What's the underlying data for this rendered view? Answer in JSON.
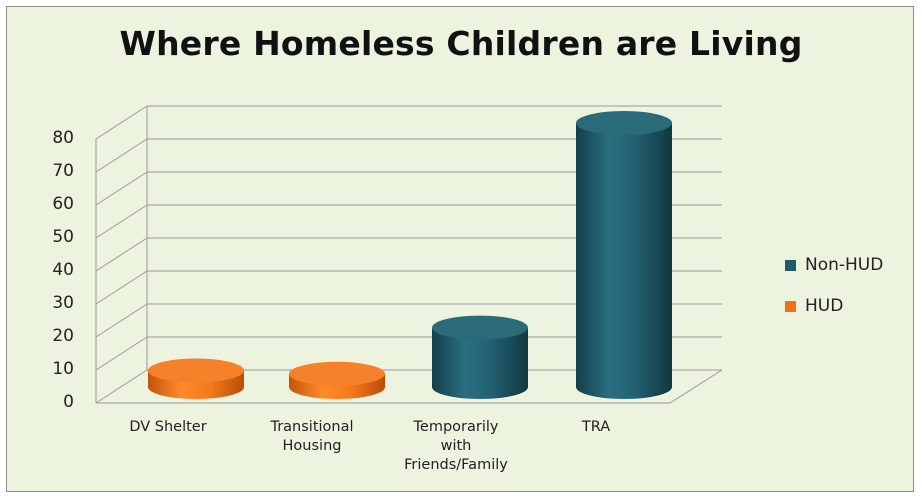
{
  "chart_data": {
    "type": "bar",
    "title": "Where Homeless Children are Living",
    "categories": [
      "DV Shelter",
      "Transitional\nHousing",
      "Temporarily\nwith\nFriends/Family",
      "TRA"
    ],
    "series": [
      {
        "name": "Non-HUD",
        "values": [
          0,
          0,
          18,
          80
        ],
        "color": "#1e5a69"
      },
      {
        "name": "HUD",
        "values": [
          5,
          4,
          0,
          0
        ],
        "color": "#f07018"
      }
    ],
    "ylim": [
      0,
      80
    ],
    "yticks": [
      0,
      10,
      20,
      30,
      40,
      50,
      60,
      70,
      80
    ],
    "grid": true,
    "legend": "right",
    "style": "3d-cylinder"
  }
}
